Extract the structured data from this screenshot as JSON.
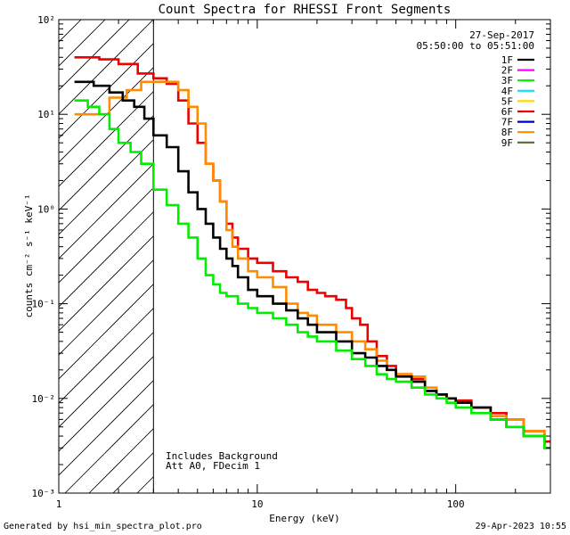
{
  "chart_data": {
    "type": "line",
    "title": "Count Spectra for RHESSI Front Segments",
    "xlabel": "Energy (keV)",
    "ylabel": "counts cm⁻² s⁻¹ keV⁻¹",
    "xscale": "log",
    "yscale": "log",
    "xlim": [
      1,
      300
    ],
    "ylim": [
      0.001,
      100
    ],
    "x_ticks": [
      {
        "value": 1,
        "label": "1"
      },
      {
        "value": 10,
        "label": "10"
      },
      {
        "value": 100,
        "label": "100"
      }
    ],
    "y_ticks": [
      {
        "exp": -3,
        "label": "10⁻³"
      },
      {
        "exp": -2,
        "label": "10⁻²"
      },
      {
        "exp": -1,
        "label": "10⁻¹"
      },
      {
        "exp": 0,
        "label": "10⁰"
      },
      {
        "exp": 1,
        "label": "10¹"
      },
      {
        "exp": 2,
        "label": "10²"
      }
    ],
    "date": "27-Sep-2017",
    "time_range": "05:50:00 to 05:51:00",
    "legend_position": "top-right",
    "threshold_energy": 3,
    "annotation_lines": [
      "Includes Background",
      "Att A0, FDecim 1"
    ],
    "legend": [
      {
        "name": "1F",
        "color": "#000000"
      },
      {
        "name": "2F",
        "color": "#ff00ff"
      },
      {
        "name": "3F",
        "color": "#00ee00"
      },
      {
        "name": "4F",
        "color": "#00e5ff"
      },
      {
        "name": "5F",
        "color": "#ffd700"
      },
      {
        "name": "6F",
        "color": "#ee0000"
      },
      {
        "name": "7F",
        "color": "#0000cc"
      },
      {
        "name": "8F",
        "color": "#ff8c00"
      },
      {
        "name": "9F",
        "color": "#556b2f"
      }
    ],
    "series": [
      {
        "name": "6F",
        "color": "#ee0000",
        "points": [
          [
            1.2,
            40
          ],
          [
            1.6,
            38
          ],
          [
            2.0,
            34
          ],
          [
            2.5,
            27
          ],
          [
            3.0,
            24
          ],
          [
            3.5,
            21
          ],
          [
            4.0,
            14
          ],
          [
            4.5,
            8
          ],
          [
            5.0,
            5
          ],
          [
            5.5,
            3
          ],
          [
            6.0,
            2
          ],
          [
            6.5,
            1.2
          ],
          [
            7,
            0.7
          ],
          [
            7.5,
            0.5
          ],
          [
            8,
            0.38
          ],
          [
            9,
            0.3
          ],
          [
            10,
            0.27
          ],
          [
            12,
            0.22
          ],
          [
            14,
            0.19
          ],
          [
            16,
            0.17
          ],
          [
            18,
            0.14
          ],
          [
            20,
            0.13
          ],
          [
            22,
            0.12
          ],
          [
            25,
            0.11
          ],
          [
            28,
            0.09
          ],
          [
            30,
            0.07
          ],
          [
            33,
            0.06
          ],
          [
            36,
            0.04
          ],
          [
            40,
            0.028
          ],
          [
            45,
            0.022
          ],
          [
            50,
            0.018
          ],
          [
            60,
            0.016
          ],
          [
            70,
            0.012
          ],
          [
            80,
            0.011
          ],
          [
            90,
            0.01
          ],
          [
            100,
            0.0095
          ],
          [
            120,
            0.008
          ],
          [
            150,
            0.007
          ],
          [
            180,
            0.006
          ],
          [
            220,
            0.0045
          ],
          [
            280,
            0.0035
          ]
        ]
      },
      {
        "name": "8F",
        "color": "#ff8c00",
        "points": [
          [
            1.2,
            10
          ],
          [
            1.5,
            10
          ],
          [
            1.8,
            15
          ],
          [
            2.2,
            18
          ],
          [
            2.6,
            22
          ],
          [
            3.0,
            22
          ],
          [
            3.5,
            22
          ],
          [
            4.0,
            18
          ],
          [
            4.5,
            12
          ],
          [
            5.0,
            8
          ],
          [
            5.5,
            3
          ],
          [
            6.0,
            2
          ],
          [
            6.5,
            1.2
          ],
          [
            7,
            0.6
          ],
          [
            7.5,
            0.4
          ],
          [
            8,
            0.3
          ],
          [
            9,
            0.22
          ],
          [
            10,
            0.19
          ],
          [
            12,
            0.15
          ],
          [
            14,
            0.1
          ],
          [
            16,
            0.08
          ],
          [
            18,
            0.075
          ],
          [
            20,
            0.06
          ],
          [
            25,
            0.05
          ],
          [
            30,
            0.04
          ],
          [
            35,
            0.033
          ],
          [
            40,
            0.025
          ],
          [
            45,
            0.02
          ],
          [
            50,
            0.018
          ],
          [
            60,
            0.017
          ],
          [
            70,
            0.013
          ],
          [
            80,
            0.011
          ],
          [
            90,
            0.01
          ],
          [
            100,
            0.009
          ],
          [
            120,
            0.008
          ],
          [
            150,
            0.0065
          ],
          [
            180,
            0.006
          ],
          [
            220,
            0.0045
          ],
          [
            280,
            0.003
          ]
        ]
      },
      {
        "name": "1F",
        "color": "#000000",
        "points": [
          [
            1.2,
            22
          ],
          [
            1.5,
            20
          ],
          [
            1.8,
            17
          ],
          [
            2.1,
            14
          ],
          [
            2.4,
            12
          ],
          [
            2.7,
            9
          ],
          [
            3.0,
            6
          ],
          [
            3.5,
            4.5
          ],
          [
            4.0,
            2.5
          ],
          [
            4.5,
            1.5
          ],
          [
            5.0,
            1.0
          ],
          [
            5.5,
            0.7
          ],
          [
            6.0,
            0.5
          ],
          [
            6.5,
            0.38
          ],
          [
            7,
            0.3
          ],
          [
            7.5,
            0.25
          ],
          [
            8,
            0.19
          ],
          [
            9,
            0.14
          ],
          [
            10,
            0.12
          ],
          [
            12,
            0.1
          ],
          [
            14,
            0.085
          ],
          [
            16,
            0.07
          ],
          [
            18,
            0.06
          ],
          [
            20,
            0.05
          ],
          [
            25,
            0.04
          ],
          [
            30,
            0.03
          ],
          [
            35,
            0.027
          ],
          [
            40,
            0.022
          ],
          [
            45,
            0.02
          ],
          [
            50,
            0.017
          ],
          [
            60,
            0.015
          ],
          [
            70,
            0.012
          ],
          [
            80,
            0.011
          ],
          [
            90,
            0.01
          ],
          [
            100,
            0.009
          ],
          [
            120,
            0.008
          ],
          [
            150,
            0.006
          ],
          [
            180,
            0.005
          ],
          [
            220,
            0.004
          ],
          [
            280,
            0.003
          ]
        ]
      },
      {
        "name": "3F",
        "color": "#00ee00",
        "points": [
          [
            1.2,
            14
          ],
          [
            1.4,
            12
          ],
          [
            1.6,
            10
          ],
          [
            1.8,
            7
          ],
          [
            2.0,
            5
          ],
          [
            2.3,
            4
          ],
          [
            2.6,
            3
          ],
          [
            3.0,
            1.6
          ],
          [
            3.5,
            1.1
          ],
          [
            4.0,
            0.7
          ],
          [
            4.5,
            0.5
          ],
          [
            5.0,
            0.3
          ],
          [
            5.5,
            0.2
          ],
          [
            6.0,
            0.16
          ],
          [
            6.5,
            0.13
          ],
          [
            7,
            0.12
          ],
          [
            8,
            0.1
          ],
          [
            9,
            0.09
          ],
          [
            10,
            0.08
          ],
          [
            12,
            0.07
          ],
          [
            14,
            0.06
          ],
          [
            16,
            0.05
          ],
          [
            18,
            0.045
          ],
          [
            20,
            0.04
          ],
          [
            25,
            0.032
          ],
          [
            30,
            0.026
          ],
          [
            35,
            0.022
          ],
          [
            40,
            0.018
          ],
          [
            45,
            0.016
          ],
          [
            50,
            0.015
          ],
          [
            60,
            0.013
          ],
          [
            70,
            0.011
          ],
          [
            80,
            0.01
          ],
          [
            90,
            0.009
          ],
          [
            100,
            0.008
          ],
          [
            120,
            0.007
          ],
          [
            150,
            0.006
          ],
          [
            180,
            0.005
          ],
          [
            220,
            0.004
          ],
          [
            280,
            0.003
          ]
        ]
      }
    ]
  },
  "footer": {
    "left": "Generated by hsi_min_spectra_plot.pro",
    "right": "29-Apr-2023 10:55"
  }
}
